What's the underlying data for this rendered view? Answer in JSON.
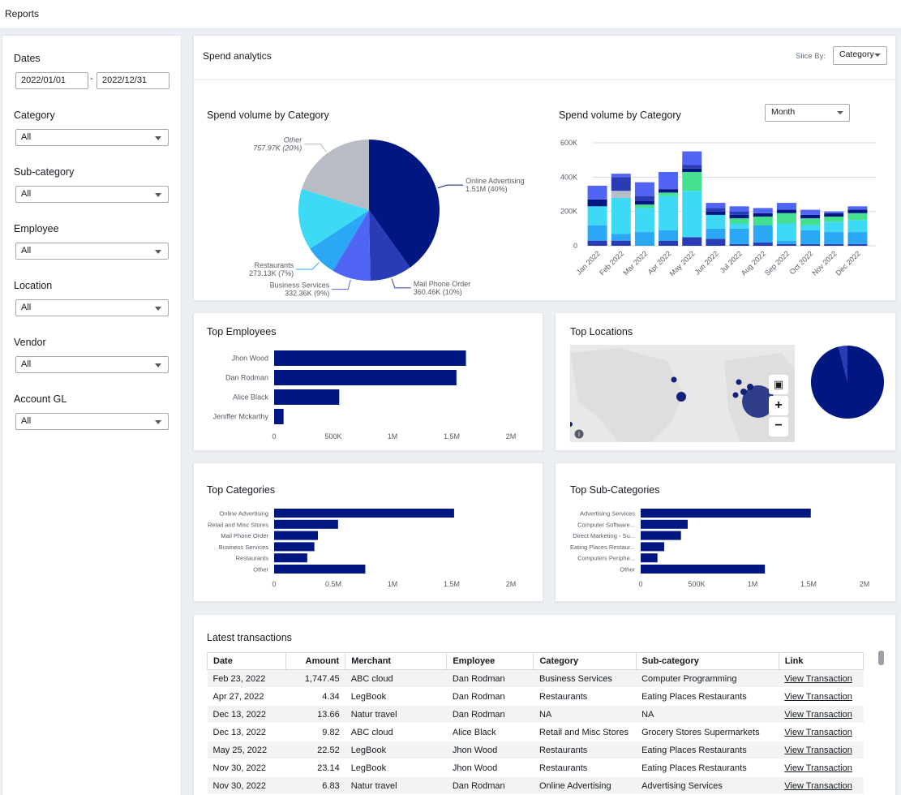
{
  "header": {
    "title": "Reports"
  },
  "filters": {
    "dates_label": "Dates",
    "date_from": "2022/01/01",
    "date_sep": "-",
    "date_to": "2022/12/31",
    "items": [
      {
        "label": "Category",
        "value": "All"
      },
      {
        "label": "Sub-category",
        "value": "All"
      },
      {
        "label": "Employee",
        "value": "All"
      },
      {
        "label": "Location",
        "value": "All"
      },
      {
        "label": "Vendor",
        "value": "All"
      },
      {
        "label": "Account GL",
        "value": "All"
      }
    ]
  },
  "spend": {
    "title": "Spend analytics",
    "slice_by_label": "Slice By:",
    "slice_by_value": "Category"
  },
  "colors": {
    "navy": "#001680",
    "blue2": "#2a3cb5",
    "blue3": "#5165f5",
    "blue4": "#2aa8f5",
    "cyan": "#3dd9f5",
    "grey": "#b8bcc5",
    "green": "#45e08f"
  },
  "chart_data": [
    {
      "type": "pie",
      "title": "Spend volume by Category",
      "slices": [
        {
          "label": "Online Advertising",
          "display": "1.51M (40%)",
          "value": 1510000,
          "color": "#001680"
        },
        {
          "label": "Mail Phone Order",
          "display": "360.46K (10%)",
          "value": 360460,
          "color": "#2a3cb5"
        },
        {
          "label": "Business Services",
          "display": "332.36K (9%)",
          "value": 332360,
          "color": "#5165f5"
        },
        {
          "label": "Restaurants",
          "display": "273.13K (7%)",
          "value": 273130,
          "color": "#2aa8f5"
        },
        {
          "label": "Other",
          "display": "757.97K (20%)",
          "value": 757970,
          "color": "#b8bcc5"
        }
      ],
      "extra_slice": {
        "label": "",
        "value": 530000,
        "color": "#3dd9f5"
      }
    },
    {
      "type": "bar",
      "stacked": true,
      "title": "Spend volume by Category",
      "granularity": "Month",
      "categories": [
        "Jan 2022",
        "Feb 2022",
        "Mar 2022",
        "Apr 2022",
        "May 2022",
        "Jun 2022",
        "Jul 2022",
        "Aug 2022",
        "Sep 2022",
        "Oct 2022",
        "Nov 2022",
        "Dec 2022"
      ],
      "yticks": [
        "0",
        "200K",
        "400K",
        "600K"
      ],
      "ylim": [
        0,
        600000
      ],
      "series": [
        {
          "color": "#2a3cb5",
          "values": [
            30000,
            30000,
            0,
            30000,
            50000,
            40000,
            10000,
            20000,
            10000,
            10000,
            10000,
            10000
          ]
        },
        {
          "color": "#2aa8f5",
          "values": [
            90000,
            40000,
            80000,
            60000,
            0,
            60000,
            90000,
            100000,
            20000,
            80000,
            70000,
            70000
          ]
        },
        {
          "color": "#3dd9f5",
          "values": [
            110000,
            210000,
            140000,
            200000,
            270000,
            80000,
            30000,
            0,
            100000,
            30000,
            60000,
            70000
          ]
        },
        {
          "color": "#45e08f",
          "values": [
            0,
            0,
            20000,
            20000,
            110000,
            0,
            30000,
            50000,
            60000,
            40000,
            30000,
            40000
          ]
        },
        {
          "color": "#001680",
          "values": [
            40000,
            0,
            20000,
            20000,
            20000,
            20000,
            20000,
            20000,
            20000,
            20000,
            20000,
            20000
          ]
        },
        {
          "color": "#b8bcc5",
          "values": [
            0,
            40000,
            0,
            0,
            0,
            0,
            0,
            0,
            0,
            0,
            0,
            0
          ]
        },
        {
          "color": "#2a3cb5",
          "values": [
            0,
            80000,
            30000,
            0,
            20000,
            20000,
            20000,
            0,
            0,
            0,
            0,
            0
          ]
        },
        {
          "color": "#5165f5",
          "values": [
            80000,
            20000,
            80000,
            100000,
            80000,
            30000,
            30000,
            30000,
            40000,
            30000,
            10000,
            20000
          ]
        }
      ]
    },
    {
      "type": "bar",
      "orientation": "horizontal",
      "title": "Top Employees",
      "categories": [
        "Jhon Wood",
        "Dan Rodman",
        "Alice Black",
        "Jeniffer Mckarthy"
      ],
      "values": [
        1620000,
        1540000,
        550000,
        80000
      ],
      "xticks": [
        "0",
        "500K",
        "1M",
        "1.5M",
        "2M"
      ],
      "xlim": [
        0,
        2000000
      ]
    },
    {
      "type": "bar",
      "orientation": "horizontal",
      "title": "Top Categories",
      "categories": [
        "Online Advertising",
        "Retail and Misc Stores",
        "Mail Phone Order",
        "Business Services",
        "Restaurants",
        "Other"
      ],
      "values": [
        1520000,
        540000,
        370000,
        340000,
        280000,
        770000
      ],
      "xticks": [
        "0",
        "0.5M",
        "1M",
        "1.5M",
        "2M"
      ],
      "xlim": [
        0,
        2000000
      ]
    },
    {
      "type": "bar",
      "orientation": "horizontal",
      "title": "Top Sub-Categories",
      "categories": [
        "Advertising Services",
        "Computer Software...",
        "Direct Marketing - Su...",
        "Eating Places Restaur...",
        "Computers Periphe...",
        "Other"
      ],
      "values": [
        1520000,
        420000,
        360000,
        210000,
        150000,
        1110000
      ],
      "xticks": [
        "0",
        "500K",
        "1M",
        "1.5M",
        "2M"
      ],
      "xlim": [
        0,
        2000000
      ]
    }
  ],
  "locations": {
    "title": "Top Locations",
    "pie_values": [
      0.96,
      0.04
    ]
  },
  "transactions": {
    "title": "Latest transactions",
    "columns": [
      "Date",
      "Amount",
      "Merchant",
      "Employee",
      "Category",
      "Sub-category",
      "Link"
    ],
    "rows": [
      [
        "Feb 23, 2022",
        "1,747.45",
        "ABC cloud",
        "Dan Rodman",
        "Business Services",
        "Computer Programming",
        "View Transaction"
      ],
      [
        "Apr 27, 2022",
        "4.34",
        "LegBook",
        "Dan Rodman",
        "Restaurants",
        "Eating Places Restaurants",
        "View Transaction"
      ],
      [
        "Dec 13, 2022",
        "13.66",
        "Natur travel",
        "Dan Rodman",
        "NA",
        "NA",
        "View Transaction"
      ],
      [
        "Dec 13, 2022",
        "9.82",
        "ABC cloud",
        "Alice Black",
        "Retail and Misc Stores",
        "Grocery Stores Supermarkets",
        "View Transaction"
      ],
      [
        "May 25, 2022",
        "22.52",
        "LegBook",
        "Jhon Wood",
        "Restaurants",
        "Eating Places Restaurants",
        "View Transaction"
      ],
      [
        "Nov 30, 2022",
        "23.14",
        "LegBook",
        "Jhon Wood",
        "Restaurants",
        "Eating Places Restaurants",
        "View Transaction"
      ],
      [
        "Nov 30, 2022",
        "6.83",
        "Natur travel",
        "Dan Rodman",
        "Online Advertising",
        "Advertising Services",
        "View Transaction"
      ]
    ]
  }
}
